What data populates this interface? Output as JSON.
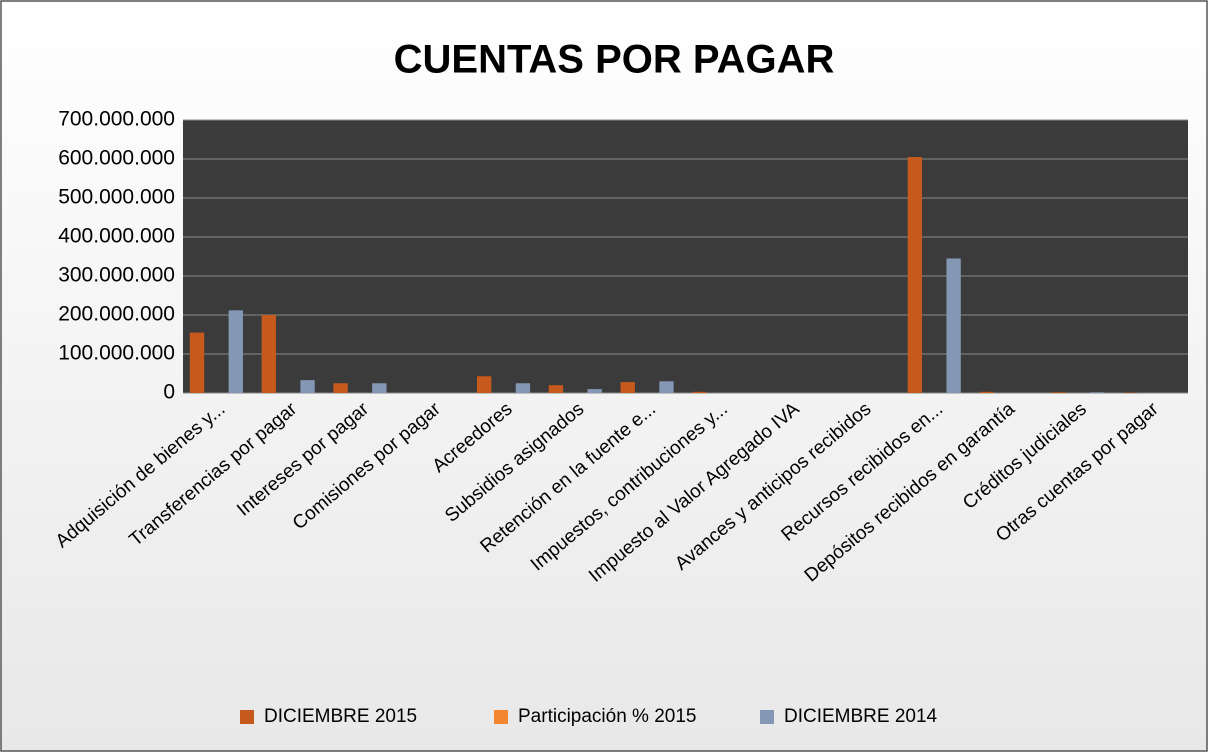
{
  "chart_data": {
    "type": "bar",
    "title": "CUENTAS POR PAGAR",
    "categories": [
      "Adquisición de bienes y...",
      "Transferencias por pagar",
      "Intereses por pagar",
      "Comisiones por pagar",
      "Acreedores",
      "Subsidios asignados",
      "Retención en la fuente e...",
      "Impuestos, contribuciones y...",
      "Impuesto al Valor Agregado IVA",
      "Avances y anticipos recibidos",
      "Recursos recibidos en...",
      "Depósitos recibidos en garantía",
      "Créditos judiciales",
      "Otras cuentas por pagar"
    ],
    "series": [
      {
        "name": "DICIEMBRE 2015",
        "color": "#c55a1c",
        "values": [
          155000000,
          200000000,
          25000000,
          0,
          43000000,
          20000000,
          28000000,
          3000000,
          0,
          0,
          605000000,
          3000000,
          2000000,
          1000000
        ]
      },
      {
        "name": "Participación % 2015",
        "color": "#f4862f",
        "values": [
          14.3,
          18.4,
          2.3,
          0,
          4,
          1.8,
          2.6,
          0.3,
          0,
          0,
          55.8,
          0.3,
          0.2,
          0.1
        ]
      },
      {
        "name": "DICIEMBRE 2014",
        "color": "#8497b4",
        "values": [
          212000000,
          33000000,
          25000000,
          0,
          25000000,
          10000000,
          30000000,
          0,
          0,
          0,
          345000000,
          0,
          2000000,
          0
        ]
      }
    ],
    "ylim": [
      0,
      700000000
    ],
    "yticks": [
      0,
      {
        "value": 100000000,
        "label": "100.000.000"
      },
      {
        "value": 200000000,
        "label": "200.000.000"
      },
      {
        "value": 300000000,
        "label": "300.000.000"
      },
      {
        "value": 400000000,
        "label": "400.000.000"
      },
      {
        "value": 500000000,
        "label": "500.000.000"
      },
      {
        "value": 600000000,
        "label": "600.000.000"
      },
      {
        "value": 700000000,
        "label": "700.000.000"
      }
    ],
    "grid": true,
    "legend": "bottom"
  }
}
